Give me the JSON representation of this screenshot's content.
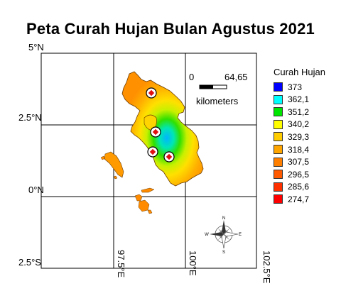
{
  "title": "Peta Curah Hujan Bulan Agustus 2021",
  "axes": {
    "lat_labels": [
      "5°N",
      "2.5°N",
      "0°N",
      "2.5°S"
    ],
    "lon_labels": [
      "97.5°E",
      "100°E",
      "102.5°E"
    ]
  },
  "scalebar": {
    "start": "0",
    "end": "64,65",
    "unit": "kilometers"
  },
  "legend": {
    "title": "Curah Hujan",
    "items": [
      {
        "label": "373",
        "color": "#0000ff"
      },
      {
        "label": "362,1",
        "color": "#00ffff"
      },
      {
        "label": "351,2",
        "color": "#00e600"
      },
      {
        "label": "340,2",
        "color": "#ffff00"
      },
      {
        "label": "329,3",
        "color": "#ffcc00"
      },
      {
        "label": "318,4",
        "color": "#ffa500"
      },
      {
        "label": "307,5",
        "color": "#ff8000"
      },
      {
        "label": "296,5",
        "color": "#ff5a00"
      },
      {
        "label": "285,6",
        "color": "#ff3000"
      },
      {
        "label": "274,7",
        "color": "#ff0000"
      }
    ]
  },
  "compass": {
    "n": "N",
    "s": "S",
    "e": "E",
    "w": "W"
  },
  "stations_count": 4
}
